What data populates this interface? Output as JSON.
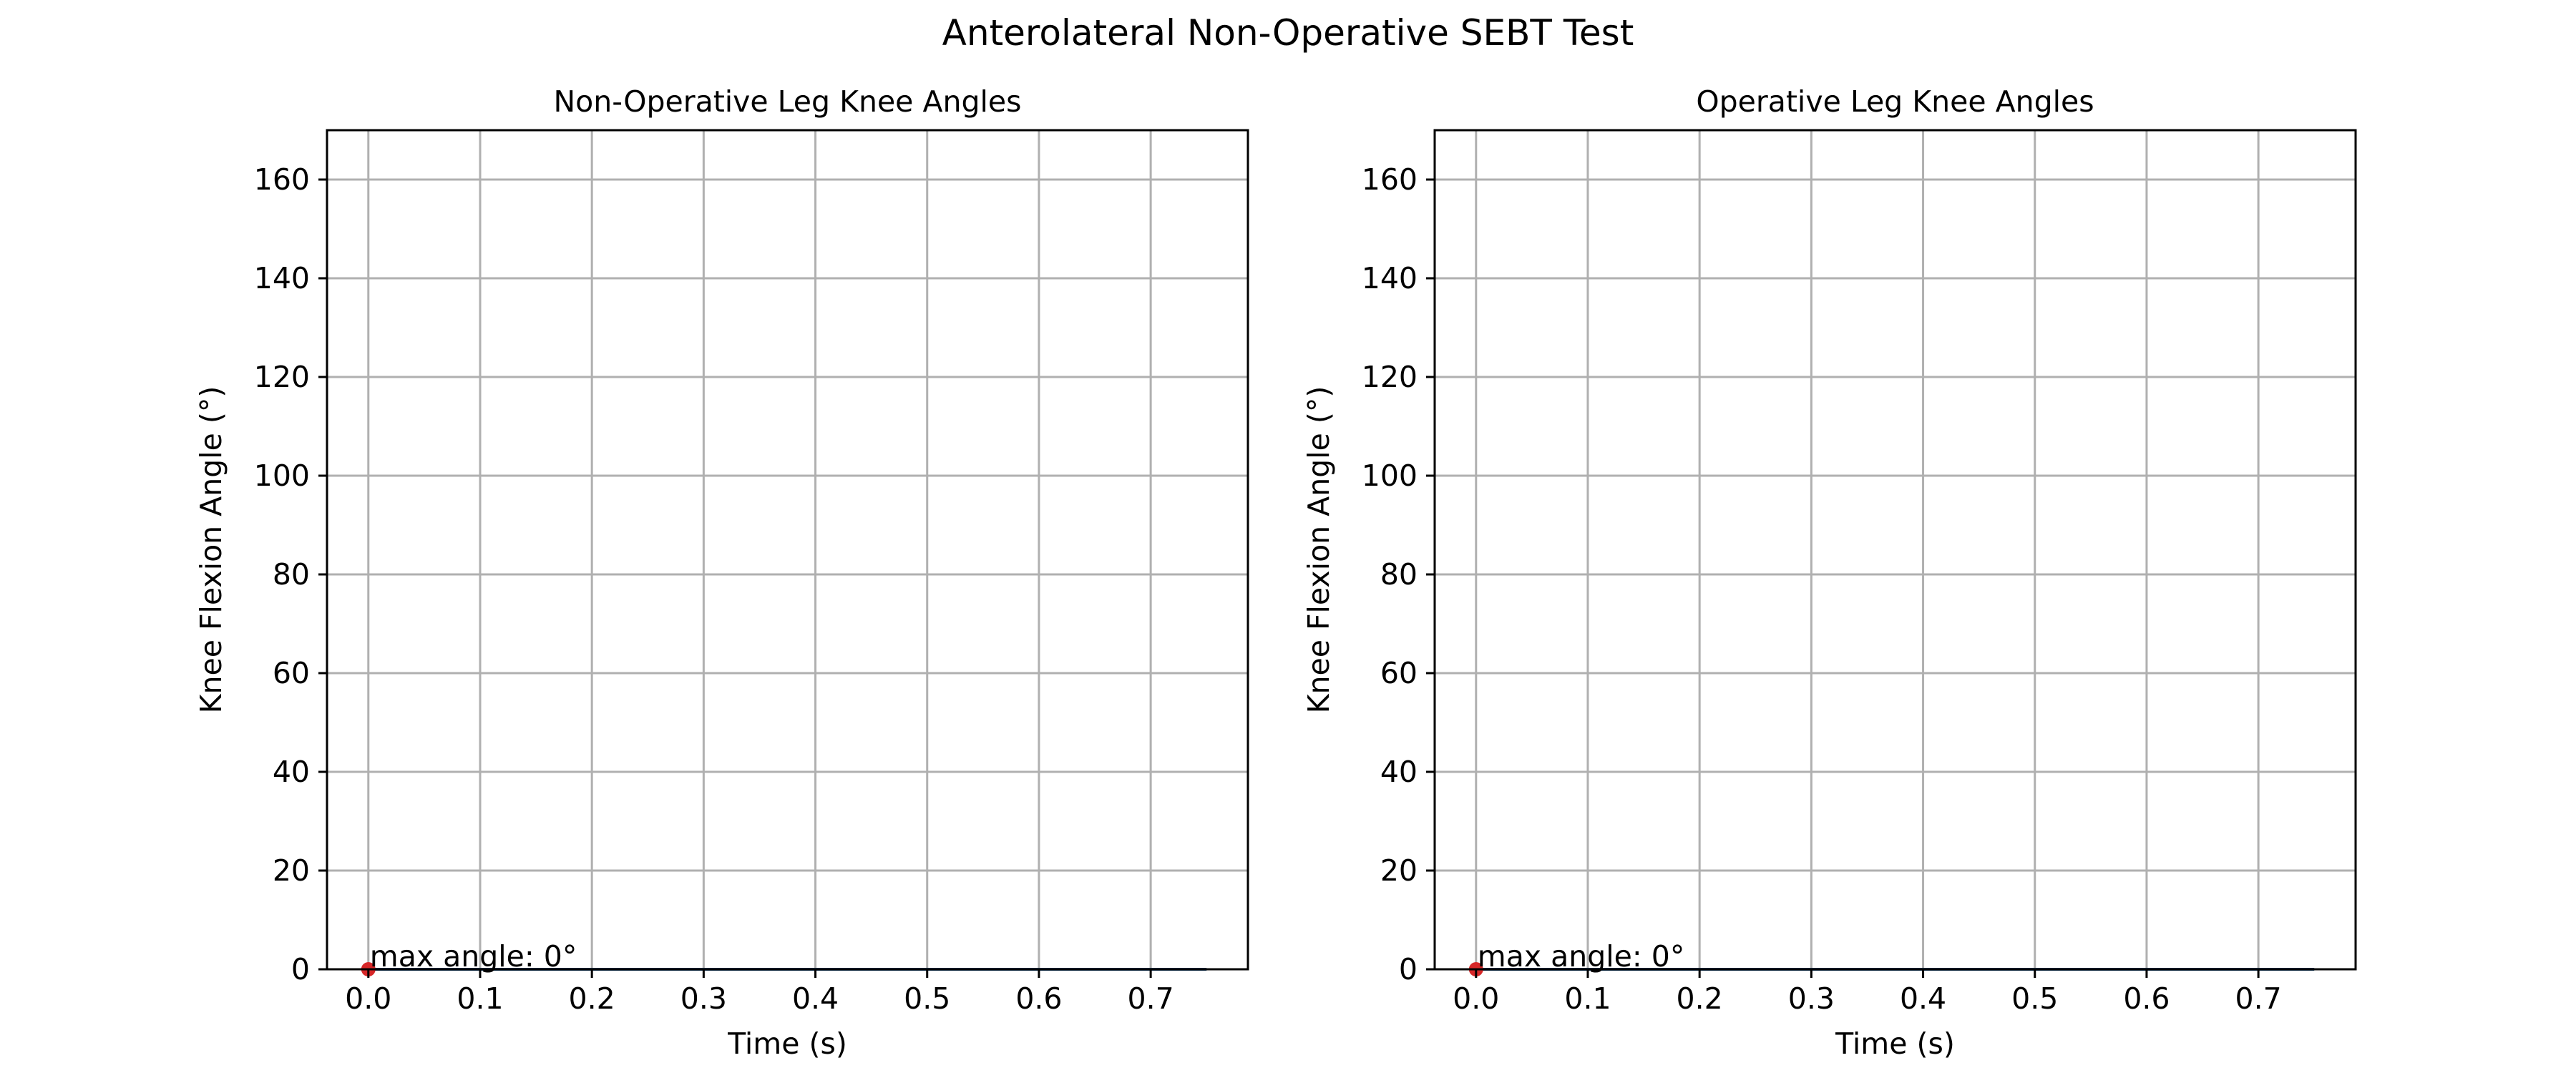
{
  "figure": {
    "title": "Anterolateral Non-Operative SEBT Test"
  },
  "colors": {
    "line": "#1f4e79",
    "max_marker": "#d62728",
    "grid": "#b0b0b0",
    "axes": "#000000"
  },
  "chart_data": [
    {
      "type": "line",
      "title": "Non-Operative Leg Knee Angles",
      "xlabel": "Time (s)",
      "ylabel": "Knee Flexion Angle (°)",
      "xlim": [
        -0.037,
        0.787
      ],
      "ylim": [
        0,
        170
      ],
      "xticks": [
        0.0,
        0.1,
        0.2,
        0.3,
        0.4,
        0.5,
        0.6,
        0.7
      ],
      "xtick_labels": [
        "0.0",
        "0.1",
        "0.2",
        "0.3",
        "0.4",
        "0.5",
        "0.6",
        "0.7"
      ],
      "yticks": [
        0,
        20,
        40,
        60,
        80,
        100,
        120,
        140,
        160
      ],
      "ytick_labels": [
        "0",
        "20",
        "40",
        "60",
        "80",
        "100",
        "120",
        "140",
        "160"
      ],
      "grid": true,
      "series": [
        {
          "x": [
            0.0,
            0.75
          ],
          "y": [
            0,
            0
          ]
        }
      ],
      "max_point": {
        "x": 0.0,
        "y": 0
      },
      "annotation": "max angle: 0°"
    },
    {
      "type": "line",
      "title": "Operative Leg Knee Angles",
      "xlabel": "Time (s)",
      "ylabel": "Knee Flexion Angle (°)",
      "xlim": [
        -0.037,
        0.787
      ],
      "ylim": [
        0,
        170
      ],
      "xticks": [
        0.0,
        0.1,
        0.2,
        0.3,
        0.4,
        0.5,
        0.6,
        0.7
      ],
      "xtick_labels": [
        "0.0",
        "0.1",
        "0.2",
        "0.3",
        "0.4",
        "0.5",
        "0.6",
        "0.7"
      ],
      "yticks": [
        0,
        20,
        40,
        60,
        80,
        100,
        120,
        140,
        160
      ],
      "ytick_labels": [
        "0",
        "20",
        "40",
        "60",
        "80",
        "100",
        "120",
        "140",
        "160"
      ],
      "grid": true,
      "series": [
        {
          "x": [
            0.0,
            0.75
          ],
          "y": [
            0,
            0
          ]
        }
      ],
      "max_point": {
        "x": 0.0,
        "y": 0
      },
      "annotation": "max angle: 0°"
    }
  ]
}
